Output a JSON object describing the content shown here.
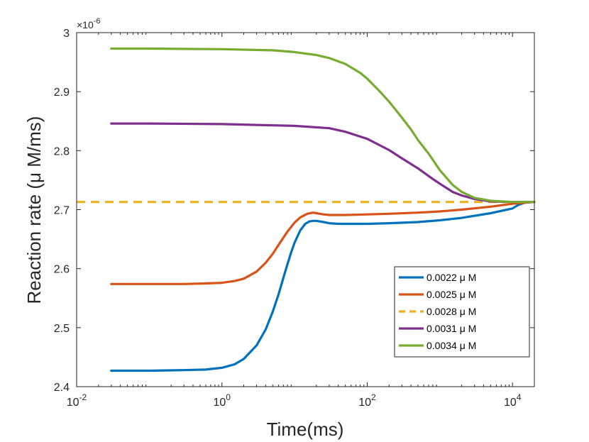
{
  "chart_data": {
    "type": "line",
    "xscale": "log",
    "xlabel": "Time(ms)",
    "ylabel": "Reaction rate (μ M/ms)",
    "xlim": [
      0.01,
      20000
    ],
    "ylim": [
      2.4,
      3.0
    ],
    "y_multiplier": "×10",
    "y_multiplier_exponent": "-6",
    "xticks": [
      {
        "value": 0.01,
        "base": "10",
        "exp": "-2"
      },
      {
        "value": 1,
        "base": "10",
        "exp": "0"
      },
      {
        "value": 100,
        "base": "10",
        "exp": "2"
      },
      {
        "value": 10000,
        "base": "10",
        "exp": "4"
      }
    ],
    "yticks": [
      {
        "value": 2.4,
        "label": "2.4"
      },
      {
        "value": 2.5,
        "label": "2.5"
      },
      {
        "value": 2.6,
        "label": "2.6"
      },
      {
        "value": 2.7,
        "label": "2.7"
      },
      {
        "value": 2.8,
        "label": "2.8"
      },
      {
        "value": 2.9,
        "label": "2.9"
      },
      {
        "value": 3.0,
        "label": "3"
      }
    ],
    "legend_position": "bottom-right",
    "series": [
      {
        "name": "0.0022 μ M",
        "color": "#0072BD",
        "dash": "solid",
        "x": [
          0.03,
          0.1,
          0.3,
          0.6,
          1,
          1.5,
          2,
          3,
          4,
          5,
          6,
          7,
          8,
          9,
          10,
          12,
          14,
          16,
          18,
          20,
          25,
          30,
          40,
          50,
          100,
          200,
          500,
          1000,
          2000,
          5000,
          10000,
          12000,
          15000,
          20000
        ],
        "values": [
          2.427,
          2.427,
          2.428,
          2.429,
          2.432,
          2.438,
          2.447,
          2.47,
          2.497,
          2.527,
          2.556,
          2.584,
          2.608,
          2.628,
          2.644,
          2.665,
          2.676,
          2.68,
          2.681,
          2.681,
          2.679,
          2.677,
          2.676,
          2.676,
          2.676,
          2.677,
          2.679,
          2.682,
          2.686,
          2.694,
          2.702,
          2.708,
          2.712,
          2.713
        ]
      },
      {
        "name": "0.0025 μ M",
        "color": "#D95319",
        "dash": "solid",
        "x": [
          0.03,
          0.1,
          0.3,
          0.6,
          1,
          1.5,
          2,
          3,
          4,
          5,
          6,
          8,
          10,
          12,
          15,
          18,
          20,
          25,
          30,
          40,
          50,
          100,
          200,
          500,
          1000,
          2000,
          5000,
          10000,
          20000
        ],
        "values": [
          2.574,
          2.574,
          2.574,
          2.575,
          2.576,
          2.579,
          2.583,
          2.595,
          2.61,
          2.625,
          2.64,
          2.663,
          2.678,
          2.687,
          2.693,
          2.695,
          2.694,
          2.692,
          2.691,
          2.691,
          2.691,
          2.692,
          2.693,
          2.695,
          2.697,
          2.7,
          2.705,
          2.71,
          2.713
        ]
      },
      {
        "name": "0.0028  μ M",
        "color": "#EDB120",
        "dash": "dashed",
        "x": [
          0.01,
          20000
        ],
        "values": [
          2.713,
          2.713
        ]
      },
      {
        "name": "0.0031  μ M",
        "color": "#7E2F8E",
        "dash": "solid",
        "x": [
          0.03,
          0.1,
          1,
          10,
          30,
          50,
          100,
          200,
          300,
          500,
          800,
          1000,
          1500,
          2000,
          3000,
          5000,
          10000,
          20000
        ],
        "values": [
          2.846,
          2.846,
          2.845,
          2.842,
          2.838,
          2.832,
          2.82,
          2.801,
          2.787,
          2.77,
          2.752,
          2.744,
          2.73,
          2.724,
          2.718,
          2.714,
          2.713,
          2.713
        ]
      },
      {
        "name": "0.0034 μ M",
        "color": "#77AC30",
        "dash": "solid",
        "x": [
          0.03,
          0.1,
          1,
          5,
          10,
          20,
          30,
          50,
          80,
          100,
          150,
          200,
          300,
          400,
          500,
          700,
          1000,
          1500,
          2000,
          3000,
          5000,
          10000,
          20000
        ],
        "values": [
          2.973,
          2.973,
          2.972,
          2.97,
          2.967,
          2.962,
          2.957,
          2.947,
          2.932,
          2.922,
          2.9,
          2.883,
          2.856,
          2.836,
          2.818,
          2.795,
          2.767,
          2.742,
          2.73,
          2.72,
          2.715,
          2.713,
          2.713
        ]
      }
    ]
  }
}
